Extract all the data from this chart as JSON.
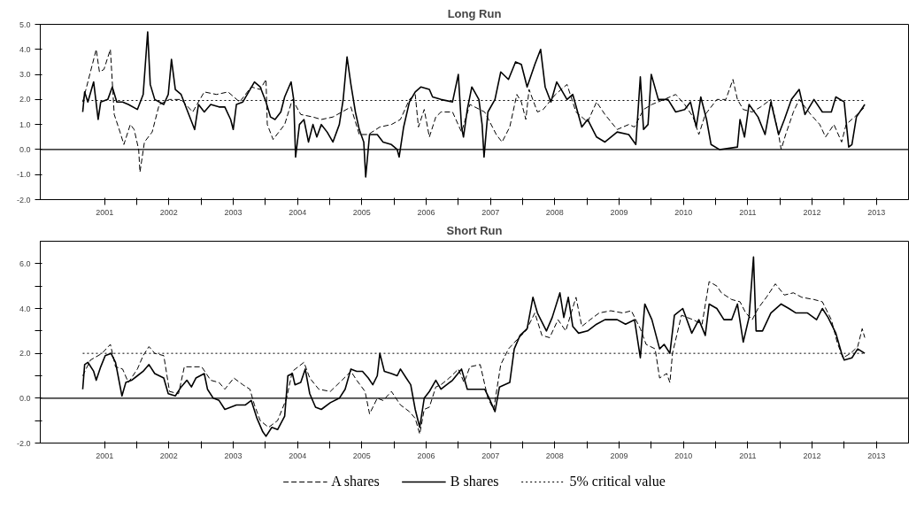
{
  "chart_data": [
    {
      "type": "line",
      "title": "Long Run",
      "legend": false,
      "grid": false,
      "xlim": [
        2000.5,
        2014.0
      ],
      "ylim": [
        -2,
        5
      ],
      "xticks": [
        {
          "value": 2002,
          "label": null
        },
        {
          "value": 2003,
          "label": null
        },
        {
          "value": 2004,
          "label": null
        },
        {
          "value": 2005,
          "label": null
        },
        {
          "value": 2006,
          "label": null
        },
        {
          "value": 2007,
          "label": null
        },
        {
          "value": 2008,
          "label": null
        },
        {
          "value": 2009,
          "label": null
        },
        {
          "value": 2010,
          "label": null
        },
        {
          "value": 2011,
          "label": null
        },
        {
          "value": 2012,
          "label": null
        },
        {
          "value": 2013,
          "label": null
        },
        {
          "value": 2001.5,
          "label": "2001"
        },
        {
          "value": 2002.5,
          "label": "2002"
        },
        {
          "value": 2003.5,
          "label": "2003"
        },
        {
          "value": 2004.5,
          "label": "2004"
        },
        {
          "value": 2005.5,
          "label": "2005"
        },
        {
          "value": 2006.5,
          "label": "2006"
        },
        {
          "value": 2007.5,
          "label": "2007"
        },
        {
          "value": 2008.5,
          "label": "2008"
        },
        {
          "value": 2009.5,
          "label": "2009"
        },
        {
          "value": 2010.5,
          "label": "2010"
        },
        {
          "value": 2011.5,
          "label": "2011"
        },
        {
          "value": 2012.5,
          "label": "2012"
        },
        {
          "value": 2013.5,
          "label": "2013"
        }
      ],
      "yticks": [
        {
          "value": -2,
          "label": "-2.0"
        },
        {
          "value": -1,
          "label": "-1.0"
        },
        {
          "value": 0,
          "label": "0.0"
        },
        {
          "value": 1,
          "label": "1.0"
        },
        {
          "value": 2,
          "label": "2.0"
        },
        {
          "value": 3,
          "label": "3.0"
        },
        {
          "value": 4,
          "label": "4.0"
        },
        {
          "value": 5,
          "label": "5.0"
        }
      ],
      "ref_lines": [
        {
          "axis": "y",
          "value": 0,
          "color": "#000000",
          "line_style": "solid"
        }
      ],
      "series": [
        {
          "color": "#000000",
          "line_style": "dashed",
          "x": [
            2001.16,
            2001.37,
            2001.42,
            2001.49,
            2001.59,
            2001.65,
            2001.74,
            2001.8,
            2001.9,
            2001.96,
            2002.03,
            2002.05,
            2002.12,
            2002.24,
            2002.35,
            2002.51,
            2002.69,
            2002.87,
            2003.05,
            2003.24,
            2003.42,
            2003.6,
            2003.78,
            2003.92,
            2004.01,
            2004.03,
            2004.12,
            2004.21,
            2004.3,
            2004.42,
            2004.55,
            2004.74,
            2004.87,
            2005.05,
            2005.19,
            2005.33,
            2005.46,
            2005.6,
            2005.78,
            2005.96,
            2006.1,
            2006.24,
            2006.33,
            2006.38,
            2006.47,
            2006.55,
            2006.65,
            2006.73,
            2006.91,
            2007.05,
            2007.18,
            2007.41,
            2007.59,
            2007.68,
            2007.8,
            2007.91,
            2007.98,
            2008.05,
            2008.1,
            2008.23,
            2008.32,
            2008.51,
            2008.69,
            2008.83,
            2009.01,
            2009.15,
            2009.28,
            2009.47,
            2009.65,
            2009.74,
            2009.88,
            2010.01,
            2010.2,
            2010.38,
            2010.52,
            2010.65,
            2010.74,
            2010.84,
            2011.02,
            2011.16,
            2011.27,
            2011.34,
            2011.43,
            2011.57,
            2011.7,
            2011.86,
            2011.98,
            2012.02,
            2012.09,
            2012.21,
            2012.3,
            2012.48,
            2012.62,
            2012.71,
            2012.84,
            2012.96,
            2013.03,
            2013.16,
            2013.32
          ],
          "values": [
            1.9,
            4.0,
            3.1,
            3.2,
            4.0,
            1.4,
            0.7,
            0.2,
            1.0,
            0.8,
            0.0,
            -0.9,
            0.3,
            0.7,
            1.8,
            2.0,
            2.0,
            1.5,
            2.3,
            2.2,
            2.3,
            1.9,
            2.5,
            2.4,
            2.8,
            1.0,
            0.4,
            0.7,
            1.0,
            2.0,
            1.4,
            1.3,
            1.2,
            1.3,
            1.5,
            1.7,
            0.6,
            0.6,
            0.9,
            1.0,
            1.2,
            2.0,
            2.2,
            0.9,
            1.6,
            0.5,
            1.3,
            1.5,
            1.5,
            0.7,
            1.8,
            1.5,
            0.6,
            0.3,
            0.9,
            2.2,
            1.9,
            1.2,
            2.4,
            1.5,
            1.6,
            2.2,
            2.6,
            1.5,
            1.1,
            1.9,
            1.4,
            0.8,
            1.0,
            0.9,
            1.6,
            1.8,
            2.0,
            2.2,
            1.8,
            1.3,
            0.6,
            1.4,
            2.0,
            2.0,
            2.8,
            2.0,
            1.6,
            1.5,
            1.7,
            2.0,
            0.6,
            0.0,
            0.6,
            1.5,
            2.0,
            1.4,
            1.0,
            0.5,
            1.0,
            0.3,
            1.0,
            1.3,
            1.7
          ]
        },
        {
          "color": "#000000",
          "line_style": "solid",
          "x": [
            2001.16,
            2001.19,
            2001.24,
            2001.33,
            2001.4,
            2001.44,
            2001.55,
            2001.62,
            2001.69,
            2001.78,
            2001.87,
            2002.01,
            2002.1,
            2002.17,
            2002.21,
            2002.28,
            2002.42,
            2002.49,
            2002.54,
            2002.6,
            2002.69,
            2002.78,
            2002.9,
            2002.96,
            2003.05,
            2003.15,
            2003.28,
            2003.37,
            2003.46,
            2003.5,
            2003.55,
            2003.65,
            2003.74,
            2003.83,
            2003.92,
            2004.01,
            2004.08,
            2004.15,
            2004.24,
            2004.3,
            2004.4,
            2004.44,
            2004.47,
            2004.53,
            2004.6,
            2004.67,
            2004.74,
            2004.8,
            2004.87,
            2004.96,
            2005.05,
            2005.15,
            2005.21,
            2005.27,
            2005.33,
            2005.4,
            2005.46,
            2005.53,
            2005.56,
            2005.62,
            2005.74,
            2005.83,
            2005.96,
            2006.05,
            2006.08,
            2006.15,
            2006.24,
            2006.33,
            2006.42,
            2006.55,
            2006.6,
            2006.73,
            2006.91,
            2007.0,
            2007.05,
            2007.08,
            2007.14,
            2007.21,
            2007.32,
            2007.37,
            2007.4,
            2007.46,
            2007.57,
            2007.66,
            2007.78,
            2007.89,
            2007.98,
            2008.07,
            2008.19,
            2008.28,
            2008.35,
            2008.44,
            2008.53,
            2008.6,
            2008.69,
            2008.78,
            2008.92,
            2009.01,
            2009.15,
            2009.28,
            2009.47,
            2009.65,
            2009.76,
            2009.83,
            2009.88,
            2009.95,
            2010.0,
            2010.11,
            2010.26,
            2010.38,
            2010.52,
            2010.61,
            2010.7,
            2010.77,
            2010.86,
            2010.93,
            2011.06,
            2011.34,
            2011.38,
            2011.45,
            2011.52,
            2011.66,
            2011.77,
            2011.86,
            2011.98,
            2012.07,
            2012.18,
            2012.3,
            2012.39,
            2012.53,
            2012.66,
            2012.8,
            2012.87,
            2013.0,
            2013.07,
            2013.12,
            2013.19,
            2013.32
          ],
          "values": [
            1.5,
            2.3,
            1.9,
            2.7,
            1.2,
            1.9,
            2.0,
            2.5,
            1.9,
            1.9,
            1.8,
            1.6,
            2.2,
            4.7,
            2.6,
            2.0,
            1.8,
            2.2,
            3.6,
            2.4,
            2.2,
            1.6,
            0.8,
            1.8,
            1.5,
            1.8,
            1.7,
            1.7,
            1.2,
            0.8,
            1.8,
            1.9,
            2.3,
            2.7,
            2.5,
            1.9,
            1.3,
            1.2,
            1.5,
            2.1,
            2.7,
            2.0,
            -0.3,
            1.0,
            1.2,
            0.3,
            1.0,
            0.5,
            1.0,
            0.7,
            0.3,
            1.0,
            2.0,
            3.7,
            2.6,
            1.5,
            0.8,
            0.3,
            -1.1,
            0.6,
            0.6,
            0.3,
            0.2,
            0.0,
            -0.3,
            0.9,
            1.9,
            2.3,
            2.5,
            2.4,
            2.1,
            2.0,
            1.9,
            3.0,
            0.9,
            0.5,
            1.6,
            2.5,
            2.0,
            1.0,
            -0.3,
            1.5,
            2.0,
            3.1,
            2.8,
            3.5,
            3.4,
            2.5,
            3.4,
            4.0,
            2.5,
            1.9,
            2.7,
            2.4,
            2.0,
            2.2,
            0.9,
            1.2,
            0.5,
            0.3,
            0.7,
            0.6,
            0.2,
            2.9,
            0.8,
            1.0,
            3.0,
            2.0,
            2.0,
            1.5,
            1.6,
            1.9,
            0.9,
            2.1,
            1.2,
            0.2,
            0.0,
            0.1,
            1.2,
            0.5,
            1.8,
            1.3,
            0.6,
            1.9,
            0.6,
            1.2,
            2.0,
            2.4,
            1.4,
            2.0,
            1.5,
            1.5,
            2.1,
            1.9,
            0.1,
            0.2,
            1.3,
            1.8
          ]
        },
        {
          "color": "#000000",
          "line_style": "dotted",
          "x": [
            2001.16,
            2013.32
          ],
          "values": [
            1.96,
            1.96
          ]
        }
      ]
    },
    {
      "type": "line",
      "title": "Short Run",
      "legend": "bottom",
      "grid": false,
      "xlim": [
        2000.5,
        2014.0
      ],
      "ylim": [
        -2,
        7
      ],
      "xticks": [
        {
          "value": 2002,
          "label": null
        },
        {
          "value": 2003,
          "label": null
        },
        {
          "value": 2004,
          "label": null
        },
        {
          "value": 2005,
          "label": null
        },
        {
          "value": 2006,
          "label": null
        },
        {
          "value": 2007,
          "label": null
        },
        {
          "value": 2008,
          "label": null
        },
        {
          "value": 2009,
          "label": null
        },
        {
          "value": 2010,
          "label": null
        },
        {
          "value": 2011,
          "label": null
        },
        {
          "value": 2012,
          "label": null
        },
        {
          "value": 2013,
          "label": null
        },
        {
          "value": 2001.5,
          "label": "2001"
        },
        {
          "value": 2002.5,
          "label": "2002"
        },
        {
          "value": 2003.5,
          "label": "2003"
        },
        {
          "value": 2004.5,
          "label": "2004"
        },
        {
          "value": 2005.5,
          "label": "2005"
        },
        {
          "value": 2006.5,
          "label": "2006"
        },
        {
          "value": 2007.5,
          "label": "2007"
        },
        {
          "value": 2008.5,
          "label": "2008"
        },
        {
          "value": 2009.5,
          "label": "2009"
        },
        {
          "value": 2010.5,
          "label": "2010"
        },
        {
          "value": 2011.5,
          "label": "2011"
        },
        {
          "value": 2012.5,
          "label": "2012"
        },
        {
          "value": 2013.5,
          "label": "2013"
        }
      ],
      "yticks": [
        {
          "value": -2,
          "label": "-2.0"
        },
        {
          "value": -1,
          "label": null
        },
        {
          "value": 0,
          "label": "0.0"
        },
        {
          "value": 1,
          "label": null
        },
        {
          "value": 2,
          "label": "2.0"
        },
        {
          "value": 3,
          "label": null
        },
        {
          "value": 4,
          "label": "4.0"
        },
        {
          "value": 5,
          "label": null
        },
        {
          "value": 6,
          "label": "6.0"
        }
      ],
      "ref_lines": [
        {
          "axis": "y",
          "value": 0,
          "color": "#000000",
          "line_style": "solid"
        }
      ],
      "series": [
        {
          "name": "A shares",
          "color": "#000000",
          "line_style": "dashed",
          "x": [
            2001.16,
            2001.28,
            2001.46,
            2001.59,
            2001.67,
            2001.78,
            2001.87,
            2002.01,
            2002.1,
            2002.19,
            2002.28,
            2002.42,
            2002.51,
            2002.65,
            2002.74,
            2002.87,
            2003.01,
            2003.15,
            2003.28,
            2003.37,
            2003.51,
            2003.65,
            2003.76,
            2003.83,
            2003.92,
            2004.05,
            2004.19,
            2004.33,
            2004.42,
            2004.6,
            2004.69,
            2004.83,
            2005.01,
            2005.19,
            2005.33,
            2005.42,
            2005.55,
            2005.62,
            2005.74,
            2005.83,
            2005.96,
            2006.1,
            2006.24,
            2006.33,
            2006.4,
            2006.47,
            2006.55,
            2006.65,
            2006.73,
            2006.86,
            2007.0,
            2007.09,
            2007.18,
            2007.34,
            2007.46,
            2007.55,
            2007.66,
            2007.78,
            2007.91,
            2008.05,
            2008.19,
            2008.3,
            2008.42,
            2008.55,
            2008.67,
            2008.83,
            2008.92,
            2009.05,
            2009.19,
            2009.37,
            2009.56,
            2009.69,
            2009.83,
            2009.92,
            2010.06,
            2010.13,
            2010.24,
            2010.29,
            2010.33,
            2010.47,
            2010.65,
            2010.79,
            2010.9,
            2011.02,
            2011.09,
            2011.25,
            2011.38,
            2011.47,
            2011.57,
            2011.66,
            2011.79,
            2011.93,
            2012.07,
            2012.21,
            2012.34,
            2012.53,
            2012.66,
            2012.8,
            2012.89,
            2012.98,
            2013.1,
            2013.21,
            2013.28,
            2013.32
          ],
          "values": [
            1.0,
            1.7,
            2.0,
            2.4,
            1.4,
            1.3,
            0.7,
            1.3,
            1.9,
            2.3,
            2.0,
            1.9,
            0.3,
            0.2,
            1.4,
            1.4,
            1.4,
            0.8,
            0.7,
            0.4,
            0.9,
            0.6,
            0.4,
            -0.3,
            -1.0,
            -1.3,
            -1.0,
            0.0,
            1.2,
            1.6,
            0.9,
            0.4,
            0.3,
            0.8,
            1.2,
            0.8,
            0.3,
            -0.7,
            0.0,
            -0.1,
            0.3,
            -0.3,
            -0.6,
            -0.9,
            -1.6,
            -0.5,
            -0.4,
            0.5,
            0.6,
            0.9,
            1.3,
            0.7,
            1.4,
            1.5,
            0.0,
            -0.5,
            1.5,
            2.2,
            2.6,
            3.0,
            3.8,
            2.8,
            2.7,
            3.5,
            3.0,
            4.5,
            3.2,
            3.5,
            3.8,
            3.9,
            3.8,
            3.9,
            3.1,
            2.4,
            2.2,
            0.9,
            1.1,
            0.7,
            2.0,
            3.7,
            3.5,
            3.3,
            5.2,
            5.0,
            4.7,
            4.4,
            4.3,
            3.8,
            3.5,
            4.0,
            4.5,
            5.1,
            4.6,
            4.7,
            4.5,
            4.4,
            4.3,
            3.5,
            2.5,
            1.8,
            2.0,
            2.3,
            3.1,
            2.7
          ]
        },
        {
          "name": "B shares",
          "color": "#000000",
          "line_style": "solid",
          "x": [
            2001.16,
            2001.19,
            2001.24,
            2001.33,
            2001.37,
            2001.44,
            2001.51,
            2001.6,
            2001.67,
            2001.71,
            2001.77,
            2001.83,
            2001.92,
            2002.01,
            2002.1,
            2002.19,
            2002.28,
            2002.42,
            2002.49,
            2002.6,
            2002.69,
            2002.78,
            2002.85,
            2002.92,
            2003.05,
            2003.1,
            2003.19,
            2003.28,
            2003.37,
            2003.46,
            2003.55,
            2003.69,
            2003.78,
            2003.87,
            2003.96,
            2004.01,
            2004.1,
            2004.19,
            2004.3,
            2004.35,
            2004.42,
            2004.46,
            2004.55,
            2004.62,
            2004.69,
            2004.78,
            2004.87,
            2005.01,
            2005.15,
            2005.24,
            2005.33,
            2005.42,
            2005.51,
            2005.6,
            2005.67,
            2005.74,
            2005.78,
            2005.85,
            2005.96,
            2006.05,
            2006.1,
            2006.19,
            2006.26,
            2006.33,
            2006.4,
            2006.47,
            2006.55,
            2006.65,
            2006.73,
            2006.91,
            2007.05,
            2007.14,
            2007.27,
            2007.41,
            2007.48,
            2007.57,
            2007.64,
            2007.8,
            2007.87,
            2007.96,
            2008.07,
            2008.16,
            2008.23,
            2008.37,
            2008.46,
            2008.58,
            2008.64,
            2008.71,
            2008.78,
            2008.87,
            2009.01,
            2009.15,
            2009.28,
            2009.47,
            2009.6,
            2009.74,
            2009.83,
            2009.9,
            2010.01,
            2010.13,
            2010.2,
            2010.29,
            2010.36,
            2010.49,
            2010.63,
            2010.74,
            2010.84,
            2010.9,
            2011.02,
            2011.13,
            2011.25,
            2011.34,
            2011.43,
            2011.52,
            2011.59,
            2011.63,
            2011.73,
            2011.86,
            2012.02,
            2012.14,
            2012.25,
            2012.43,
            2012.57,
            2012.66,
            2012.75,
            2012.87,
            2012.96,
            2013.0,
            2013.12,
            2013.21,
            2013.32
          ],
          "values": [
            0.4,
            1.5,
            1.6,
            1.2,
            0.8,
            1.4,
            1.9,
            2.0,
            1.6,
            1.0,
            0.1,
            0.7,
            0.8,
            1.0,
            1.2,
            1.5,
            1.1,
            0.9,
            0.2,
            0.1,
            0.5,
            0.8,
            0.5,
            0.9,
            1.1,
            0.4,
            0.0,
            -0.1,
            -0.5,
            -0.4,
            -0.3,
            -0.3,
            -0.1,
            -0.9,
            -1.5,
            -1.7,
            -1.3,
            -1.4,
            -0.8,
            1.0,
            1.1,
            0.6,
            0.7,
            1.3,
            0.2,
            -0.4,
            -0.5,
            -0.2,
            0.0,
            0.4,
            1.3,
            1.2,
            1.2,
            0.9,
            0.6,
            1.0,
            2.0,
            1.2,
            1.1,
            1.0,
            1.3,
            0.9,
            0.6,
            -0.5,
            -1.3,
            0.0,
            0.3,
            0.8,
            0.4,
            0.8,
            1.3,
            0.4,
            0.4,
            0.4,
            0.0,
            -0.6,
            0.5,
            0.7,
            2.2,
            2.8,
            3.1,
            4.5,
            3.8,
            3.0,
            3.6,
            4.7,
            3.6,
            4.5,
            3.2,
            2.9,
            3.0,
            3.3,
            3.5,
            3.5,
            3.3,
            3.5,
            1.8,
            4.2,
            3.5,
            2.2,
            2.4,
            2.0,
            3.7,
            4.0,
            2.9,
            3.5,
            2.8,
            4.2,
            4.0,
            3.5,
            3.5,
            4.2,
            2.5,
            3.6,
            6.3,
            3.0,
            3.0,
            3.8,
            4.2,
            4.0,
            3.8,
            3.8,
            3.5,
            4.0,
            3.6,
            2.9,
            2.0,
            1.7,
            1.8,
            2.2,
            2.0
          ]
        },
        {
          "name": "5% critical value",
          "color": "#000000",
          "line_style": "dotted",
          "x": [
            2001.16,
            2013.32
          ],
          "values": [
            2.0,
            2.0
          ]
        }
      ]
    }
  ]
}
